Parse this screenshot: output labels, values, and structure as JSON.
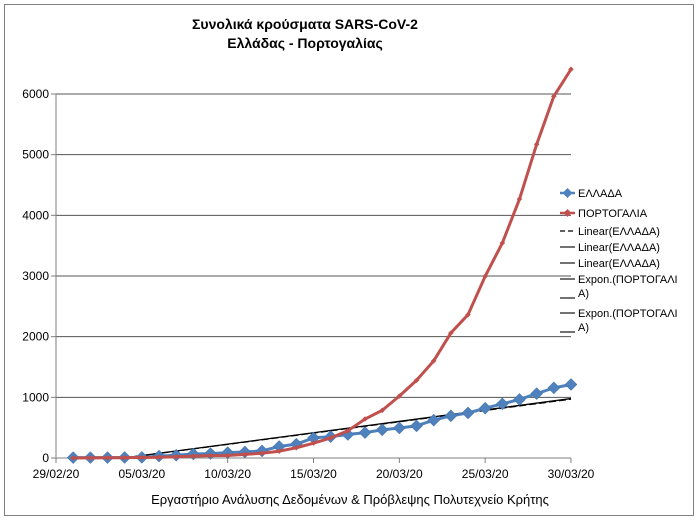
{
  "chart_data": {
    "type": "line",
    "title": "Συνολικά κρούσματα SARS-CoV-2",
    "subtitle": "Ελλάδας - Πορτογαλίας",
    "footer": "Εργαστήριο Ανάλυσης Δεδομένων & Πρόβλεψης Πολυτεχνείο Κρήτης",
    "ylim": [
      0,
      6000
    ],
    "yticks": [
      0,
      1000,
      2000,
      3000,
      4000,
      5000,
      6000
    ],
    "xticks": [
      "29/02/20",
      "05/03/20",
      "10/03/20",
      "15/03/20",
      "20/03/20",
      "25/03/20",
      "30/03/20"
    ],
    "grid": "horizontal",
    "legend_position": "right",
    "legend": [
      "ΕΛΛΑΔΑ",
      "ΠΟΡΤΟΓΑΛΙΑ",
      "Linear(ΕΛΛΑΔΑ)",
      "Linear(ΕΛΛΑΔΑ)",
      "Linear(ΕΛΛΑΔΑ)",
      "Expon.(ΠΟΡΤΟΓΑΛΙ Α)",
      "Expon.(ΠΟΡΤΟΓΑΛΙ Α)"
    ],
    "series": [
      {
        "name": "ΕΛΛΑΔΑ",
        "color": "#4f81bd",
        "marker": "diamond",
        "x": [
          "01/03/20",
          "02/03/20",
          "03/03/20",
          "04/03/20",
          "05/03/20",
          "06/03/20",
          "07/03/20",
          "08/03/20",
          "09/03/20",
          "10/03/20",
          "11/03/20",
          "12/03/20",
          "13/03/20",
          "14/03/20",
          "15/03/20",
          "16/03/20",
          "17/03/20",
          "18/03/20",
          "19/03/20",
          "20/03/20",
          "21/03/20",
          "22/03/20",
          "23/03/20",
          "24/03/20",
          "25/03/20",
          "26/03/20",
          "27/03/20",
          "28/03/20",
          "29/03/20",
          "30/03/20"
        ],
        "values": [
          7,
          7,
          7,
          9,
          10,
          31,
          45,
          66,
          73,
          89,
          99,
          117,
          190,
          228,
          331,
          352,
          387,
          418,
          464,
          495,
          530,
          624,
          695,
          743,
          821,
          892,
          966,
          1061,
          1156,
          1212
        ]
      },
      {
        "name": "ΠΟΡΤΟΓΑΛΙΑ",
        "color": "#c0504d",
        "marker": "small-diamond",
        "x": [
          "01/03/20",
          "02/03/20",
          "03/03/20",
          "04/03/20",
          "05/03/20",
          "06/03/20",
          "07/03/20",
          "08/03/20",
          "09/03/20",
          "10/03/20",
          "11/03/20",
          "12/03/20",
          "13/03/20",
          "14/03/20",
          "15/03/20",
          "16/03/20",
          "17/03/20",
          "18/03/20",
          "19/03/20",
          "20/03/20",
          "21/03/20",
          "22/03/20",
          "23/03/20",
          "24/03/20",
          "25/03/20",
          "26/03/20",
          "27/03/20",
          "28/03/20",
          "29/03/20",
          "30/03/20"
        ],
        "values": [
          0,
          2,
          4,
          5,
          9,
          13,
          21,
          30,
          39,
          41,
          59,
          78,
          112,
          169,
          245,
          331,
          448,
          642,
          785,
          1020,
          1280,
          1600,
          2060,
          2362,
          2995,
          3544,
          4268,
          5170,
          5962,
          6408
        ]
      }
    ],
    "trendlines": [
      {
        "name": "Linear(ΕΛΛΑΔΑ)",
        "style": "dashed",
        "color": "#000000",
        "x0": "01/03/20",
        "y0": -110,
        "x1": "30/03/20",
        "y1": 970
      },
      {
        "name": "Linear(ΕΛΛΑΔΑ)",
        "style": "solid",
        "color": "#000000",
        "x0": "01/03/20",
        "y0": -110,
        "x1": "30/03/20",
        "y1": 980
      }
    ]
  }
}
